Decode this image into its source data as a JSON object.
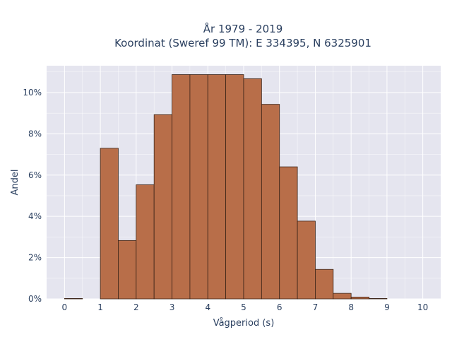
{
  "chart_data": {
    "type": "bar",
    "title": "År 1979 - 2019",
    "subtitle": "Koordinat (Sweref 99 TM): E 334395, N 6325901",
    "xlabel": "Vågperiod (s)",
    "ylabel": "Andel",
    "bin_width": 0.5,
    "bin_starts": [
      0,
      0.5,
      1,
      1.5,
      2,
      2.5,
      3,
      3.5,
      4,
      4.5,
      5,
      5.5,
      6,
      6.5,
      7,
      7.5,
      8,
      8.5,
      9,
      9.5
    ],
    "values": [
      0.02,
      0,
      7.3,
      2.83,
      5.53,
      8.93,
      10.87,
      10.87,
      10.87,
      10.87,
      10.67,
      9.43,
      6.4,
      3.77,
      1.43,
      0.27,
      0.09,
      0.02,
      0,
      0
    ],
    "xlim": [
      -0.5,
      10.5
    ],
    "ylim": [
      0,
      11.3
    ],
    "x_ticks": [
      0,
      1,
      2,
      3,
      4,
      5,
      6,
      7,
      8,
      9,
      10
    ],
    "x_tick_labels": [
      "0",
      "1",
      "2",
      "3",
      "4",
      "5",
      "6",
      "7",
      "8",
      "9",
      "10"
    ],
    "y_ticks": [
      0,
      2,
      4,
      6,
      8,
      10
    ],
    "y_tick_labels": [
      "0%",
      "2%",
      "4%",
      "6%",
      "8%",
      "10%"
    ],
    "grid": true,
    "colors": {
      "bar_fill": "#b86e49",
      "bar_stroke": "#3a2418",
      "plot_background": "#e5e5ef",
      "grid": "#ffffff",
      "text": "#2a3f5f"
    }
  }
}
